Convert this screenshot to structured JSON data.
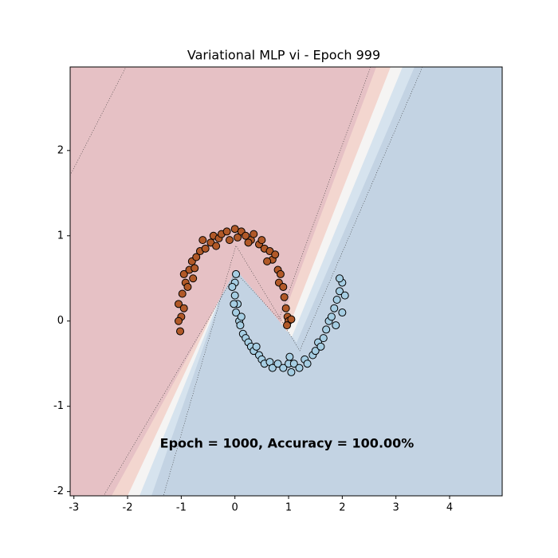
{
  "chart_data": {
    "type": "scatter",
    "title": "Variational MLP vi - Epoch 999",
    "annotation": "Epoch = 1000, Accuracy = 100.00%",
    "xlim": [
      -3.07,
      4.98
    ],
    "ylim": [
      -2.05,
      2.98
    ],
    "xticks": [
      -3,
      -2,
      -1,
      0,
      1,
      2,
      3,
      4
    ],
    "yticks": [
      -2,
      -1,
      0,
      1,
      2
    ],
    "series": [
      {
        "color": "#b15928",
        "x": [
          -1.0,
          -1.05,
          -0.95,
          -1.02,
          -0.98,
          -0.92,
          -0.95,
          -0.85,
          -0.88,
          -0.8,
          -0.72,
          -0.75,
          -0.65,
          -0.55,
          -0.6,
          -0.45,
          -0.4,
          -0.3,
          -0.25,
          -0.15,
          -0.1,
          0.0,
          0.05,
          0.12,
          0.2,
          0.3,
          0.35,
          0.45,
          0.5,
          0.55,
          0.65,
          0.7,
          0.75,
          0.8,
          0.85,
          0.82,
          0.9,
          0.92,
          0.95,
          0.98,
          1.0,
          0.97,
          1.05,
          -1.05,
          -0.78,
          0.6,
          0.25,
          -0.35
        ],
        "y": [
          0.05,
          0.2,
          0.15,
          -0.12,
          0.32,
          0.45,
          0.55,
          0.6,
          0.4,
          0.7,
          0.75,
          0.62,
          0.82,
          0.85,
          0.95,
          0.92,
          1.0,
          0.97,
          1.02,
          1.05,
          0.95,
          1.08,
          0.98,
          1.05,
          1.0,
          0.95,
          1.02,
          0.9,
          0.95,
          0.85,
          0.82,
          0.72,
          0.78,
          0.6,
          0.55,
          0.45,
          0.4,
          0.28,
          0.15,
          0.05,
          0.0,
          -0.05,
          0.02,
          0.0,
          0.5,
          0.7,
          0.92,
          0.88
        ]
      },
      {
        "color": "#a6cee3",
        "x": [
          0.0,
          0.02,
          -0.05,
          0.0,
          0.05,
          0.02,
          0.08,
          0.1,
          0.15,
          0.2,
          0.25,
          0.3,
          0.35,
          0.45,
          0.5,
          0.55,
          0.65,
          0.7,
          0.8,
          0.9,
          1.0,
          1.05,
          1.1,
          1.2,
          1.3,
          1.35,
          1.45,
          1.5,
          1.55,
          1.65,
          1.7,
          1.75,
          1.8,
          1.85,
          1.9,
          1.95,
          2.0,
          1.95,
          2.05,
          2.0,
          1.88,
          0.4,
          0.12,
          1.6,
          1.02,
          -0.02
        ],
        "y": [
          0.45,
          0.55,
          0.4,
          0.3,
          0.2,
          0.1,
          0.0,
          -0.05,
          -0.15,
          -0.2,
          -0.25,
          -0.3,
          -0.35,
          -0.4,
          -0.45,
          -0.5,
          -0.48,
          -0.55,
          -0.5,
          -0.55,
          -0.5,
          -0.6,
          -0.5,
          -0.55,
          -0.45,
          -0.5,
          -0.4,
          -0.35,
          -0.25,
          -0.2,
          -0.1,
          0.0,
          0.05,
          0.15,
          0.25,
          0.35,
          0.45,
          0.5,
          0.3,
          0.1,
          -0.05,
          -0.3,
          0.05,
          -0.3,
          -0.42,
          0.2
        ]
      }
    ]
  }
}
